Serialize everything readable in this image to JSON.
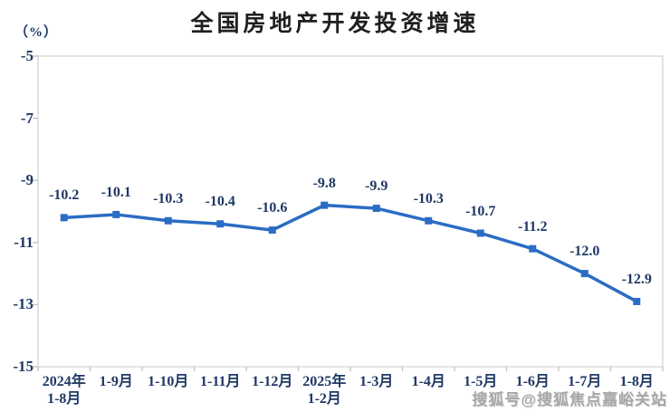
{
  "watermark": "搜狐号@搜狐焦点嘉峪关站",
  "chart_data": {
    "type": "line",
    "title": "全国房地产开发投资增速",
    "ylabel": "（%）",
    "xlabel": "",
    "categories": [
      [
        "2024年",
        "1-8月"
      ],
      [
        "1-9月"
      ],
      [
        "1-10月"
      ],
      [
        "1-11月"
      ],
      [
        "1-12月"
      ],
      [
        "2025年",
        "1-2月"
      ],
      [
        "1-3月"
      ],
      [
        "1-4月"
      ],
      [
        "1-5月"
      ],
      [
        "1-6月"
      ],
      [
        "1-7月"
      ],
      [
        "1-8月"
      ]
    ],
    "values": [
      -10.2,
      -10.1,
      -10.3,
      -10.4,
      -10.6,
      -9.8,
      -9.9,
      -10.3,
      -10.7,
      -11.2,
      -12.0,
      -12.9
    ],
    "labels": [
      "-10.2",
      "-10.1",
      "-10.3",
      "-10.4",
      "-10.6",
      "-9.8",
      "-9.9",
      "-10.3",
      "-10.7",
      "-11.2",
      "-12.0",
      "-12.9"
    ],
    "ylim": [
      -15,
      -5
    ],
    "yticks": [
      -5,
      -7,
      -9,
      -11,
      -13,
      -15
    ],
    "ytick_labels": [
      "-5",
      "-7",
      "-9",
      "-11",
      "-13",
      "-15"
    ],
    "grid": false,
    "legend": "none",
    "colors": {
      "line": "#2b6cc4",
      "marker": "#2b6cc4",
      "data_label": "#1f3864",
      "axis_text": "#1f3864",
      "border": "#d6d6d6",
      "tick": "#bfbfbf",
      "title": "#1f1f1f",
      "watermark": "#a7a7a7"
    }
  }
}
